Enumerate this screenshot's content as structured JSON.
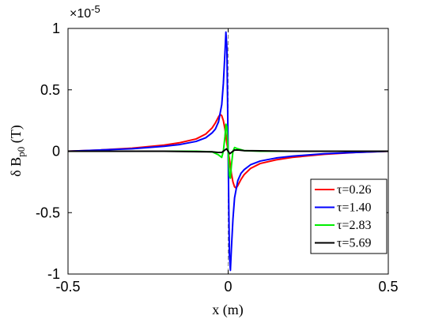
{
  "chart_data": {
    "type": "line",
    "title": "",
    "xlabel": "x (m)",
    "ylabel": "δ B_p0 (T)",
    "y_multiplier": "×10^-5",
    "xlim": [
      -0.5,
      0.5
    ],
    "ylim": [
      -1,
      1
    ],
    "xticks": [
      -0.5,
      0,
      0.5
    ],
    "xtick_labels": [
      "-0.5",
      "0",
      "0.5"
    ],
    "yticks": [
      -1,
      -0.5,
      0,
      0.5,
      1
    ],
    "ytick_labels": [
      "-1",
      "-0.5",
      "0",
      "0.5",
      "1"
    ],
    "grid": false,
    "legend_position": "lower-right",
    "reference_line": {
      "x": 0,
      "style": "dashed",
      "color": "#888888"
    },
    "series": [
      {
        "name": "τ=0.26",
        "color": "#ff0000",
        "x": [
          -0.5,
          -0.4,
          -0.3,
          -0.2,
          -0.15,
          -0.1,
          -0.07,
          -0.05,
          -0.04,
          -0.03,
          -0.025,
          -0.02,
          -0.015,
          -0.01,
          -0.005,
          0,
          0.005,
          0.01,
          0.015,
          0.02,
          0.025,
          0.03,
          0.04,
          0.05,
          0.07,
          0.1,
          0.15,
          0.2,
          0.3,
          0.4,
          0.5
        ],
        "y": [
          0.0,
          0.01,
          0.025,
          0.05,
          0.07,
          0.1,
          0.14,
          0.19,
          0.23,
          0.28,
          0.3,
          0.29,
          0.25,
          0.18,
          0.08,
          0.0,
          -0.08,
          -0.18,
          -0.25,
          -0.29,
          -0.3,
          -0.28,
          -0.23,
          -0.19,
          -0.14,
          -0.1,
          -0.07,
          -0.05,
          -0.025,
          -0.01,
          0.0
        ]
      },
      {
        "name": "τ=1.40",
        "color": "#0000ff",
        "x": [
          -0.5,
          -0.4,
          -0.3,
          -0.2,
          -0.15,
          -0.1,
          -0.07,
          -0.05,
          -0.04,
          -0.03,
          -0.02,
          -0.015,
          -0.01,
          -0.007,
          -0.004,
          -0.002,
          0,
          0.002,
          0.004,
          0.007,
          0.01,
          0.015,
          0.02,
          0.03,
          0.04,
          0.05,
          0.07,
          0.1,
          0.15,
          0.2,
          0.3,
          0.4,
          0.5
        ],
        "y": [
          0.0,
          0.01,
          0.02,
          0.04,
          0.055,
          0.08,
          0.11,
          0.15,
          0.18,
          0.24,
          0.38,
          0.55,
          0.8,
          0.97,
          0.85,
          0.45,
          0.0,
          -0.45,
          -0.85,
          -0.97,
          -0.8,
          -0.55,
          -0.38,
          -0.24,
          -0.18,
          -0.15,
          -0.11,
          -0.08,
          -0.055,
          -0.04,
          -0.02,
          -0.01,
          0.0
        ]
      },
      {
        "name": "τ=2.83",
        "color": "#00ee00",
        "x": [
          -0.5,
          -0.3,
          -0.1,
          -0.05,
          -0.03,
          -0.02,
          -0.015,
          -0.01,
          -0.007,
          -0.004,
          0,
          0.004,
          0.007,
          0.01,
          0.015,
          0.02,
          0.03,
          0.05,
          0.1,
          0.3,
          0.5
        ],
        "y": [
          0.0,
          0.0,
          0.0,
          -0.005,
          -0.03,
          -0.05,
          0.0,
          0.12,
          0.22,
          0.2,
          0.0,
          -0.2,
          -0.22,
          -0.12,
          0.0,
          0.03,
          0.02,
          0.005,
          0.0,
          0.0,
          0.0
        ]
      },
      {
        "name": "τ=5.69",
        "color": "#000000",
        "x": [
          -0.5,
          -0.2,
          -0.05,
          -0.03,
          -0.02,
          -0.015,
          -0.01,
          -0.005,
          0,
          0.005,
          0.01,
          0.015,
          0.02,
          0.03,
          0.05,
          0.2,
          0.5
        ],
        "y": [
          0.0,
          0.0,
          -0.005,
          -0.01,
          -0.01,
          0.0,
          0.01,
          0.02,
          0.0,
          -0.02,
          -0.01,
          0.0,
          0.01,
          0.01,
          0.005,
          0.0,
          0.0
        ]
      }
    ]
  }
}
